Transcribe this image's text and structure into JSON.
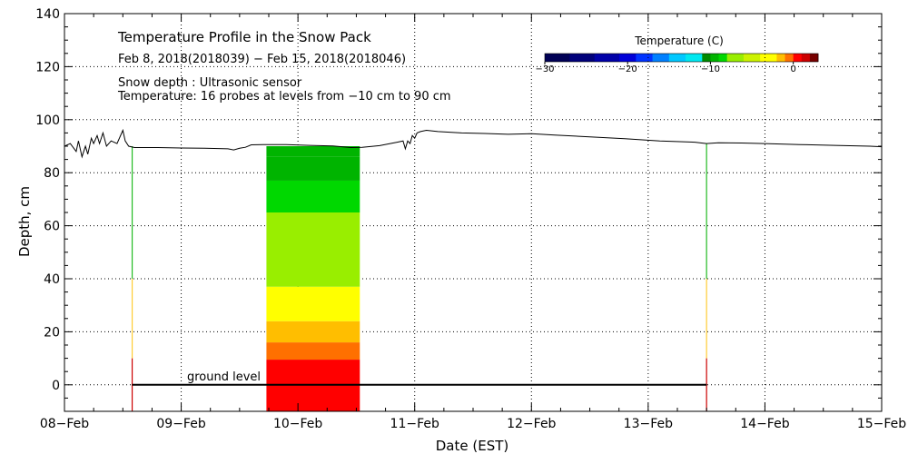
{
  "chart_data": {
    "type": "area",
    "title": "Temperature Profile in the Snow Pack",
    "subtitle": "Feb  8, 2018(2018039) − Feb 15, 2018(2018046)",
    "info_lines": [
      "Snow depth : Ultrasonic sensor",
      "Temperature: 16 probes at levels from −10 cm to 90 cm"
    ],
    "xlabel": "Date (EST)",
    "ylabel": "Depth, cm",
    "xlim": [
      0,
      7
    ],
    "ylim": [
      -10,
      140
    ],
    "x_ticks": [
      {
        "value": 0,
        "label": "08−Feb"
      },
      {
        "value": 1,
        "label": "09−Feb"
      },
      {
        "value": 2,
        "label": "10−Feb"
      },
      {
        "value": 3,
        "label": "11−Feb"
      },
      {
        "value": 4,
        "label": "12−Feb"
      },
      {
        "value": 5,
        "label": "13−Feb"
      },
      {
        "value": 6,
        "label": "14−Feb"
      },
      {
        "value": 7,
        "label": "15−Feb"
      }
    ],
    "y_ticks": [
      {
        "value": 0,
        "label": "0"
      },
      {
        "value": 20,
        "label": "20"
      },
      {
        "value": 40,
        "label": "40"
      },
      {
        "value": 60,
        "label": "60"
      },
      {
        "value": 80,
        "label": "80"
      },
      {
        "value": 100,
        "label": "100"
      },
      {
        "value": 120,
        "label": "120"
      },
      {
        "value": 140,
        "label": "140"
      }
    ],
    "grid": true,
    "ground_level": {
      "depth": 0,
      "label": "ground level",
      "x_start": 0.58,
      "x_end": 5.5,
      "label_x": 1.05
    },
    "snow_depth": {
      "name": "Snow depth (Ultrasonic sensor)",
      "x": [
        0,
        0.05,
        0.1,
        0.12,
        0.15,
        0.18,
        0.2,
        0.23,
        0.25,
        0.28,
        0.3,
        0.33,
        0.36,
        0.4,
        0.45,
        0.5,
        0.52,
        0.55,
        0.6,
        0.7,
        0.8,
        1.0,
        1.2,
        1.4,
        1.45,
        1.5,
        1.55,
        1.6,
        1.7,
        1.9,
        2.1,
        2.3,
        2.45,
        2.55,
        2.7,
        2.85,
        2.9,
        2.92,
        2.94,
        2.96,
        2.98,
        3.0,
        3.02,
        3.05,
        3.1,
        3.2,
        3.4,
        3.6,
        3.8,
        4.0,
        4.2,
        4.5,
        4.8,
        5.1,
        5.4,
        5.5,
        5.6,
        5.8,
        6.0,
        6.3,
        6.6,
        6.9,
        7.0
      ],
      "depth": [
        90,
        91,
        88,
        92,
        86,
        90,
        87,
        93,
        91,
        94,
        91,
        95,
        90,
        92,
        91,
        96,
        92,
        90,
        89.5,
        89.5,
        89.5,
        89.3,
        89.2,
        89.0,
        88.6,
        89.2,
        89.6,
        90.5,
        90.6,
        90.6,
        90.3,
        90.1,
        89.5,
        89.6,
        90.2,
        91.5,
        92,
        89,
        92,
        91,
        94,
        93,
        95,
        95.5,
        96,
        95.5,
        95,
        94.8,
        94.5,
        94.7,
        94.2,
        93.5,
        92.8,
        92,
        91.5,
        91,
        91.3,
        91.2,
        91,
        90.6,
        90.3,
        90.0,
        89.8
      ]
    },
    "temperature_profile": {
      "x_start": 1.73,
      "x_end": 2.53,
      "bands": [
        {
          "temp_c": 0.3,
          "bottom": -10,
          "top": 9.5
        },
        {
          "temp_c": -0.8,
          "bottom": 9.5,
          "top": 16
        },
        {
          "temp_c": -1.7,
          "bottom": 16,
          "top": 24
        },
        {
          "temp_c": -3.0,
          "bottom": 24,
          "top": 37
        },
        {
          "temp_c": -7.0,
          "bottom": 37,
          "top": 65
        },
        {
          "temp_c": -8.5,
          "bottom": 65,
          "top": 77
        },
        {
          "temp_c": -9.3,
          "bottom": 77,
          "top": 86
        },
        {
          "temp_c": -10.0,
          "bottom": 86,
          "top": 90
        }
      ]
    },
    "sensor_traces": [
      {
        "x": 0.58,
        "segments": [
          {
            "from": -10,
            "to": 10,
            "color": "#cc0000"
          },
          {
            "from": 10,
            "to": 40,
            "color": "#ffcc33"
          },
          {
            "from": 40,
            "to": 90,
            "color": "#22bb22"
          }
        ]
      },
      {
        "x": 5.5,
        "segments": [
          {
            "from": -10,
            "to": 10,
            "color": "#cc0000"
          },
          {
            "from": 10,
            "to": 40,
            "color": "#ffcc33"
          },
          {
            "from": 40,
            "to": 91,
            "color": "#22bb22"
          }
        ]
      }
    ],
    "colorbar": {
      "title": "Temperature (C)",
      "min": -30,
      "max": 3,
      "ticks": [
        {
          "value": -30,
          "label": "−30"
        },
        {
          "value": -20,
          "label": "−20"
        },
        {
          "value": -10,
          "label": "−10"
        },
        {
          "value": 0,
          "label": "0"
        }
      ],
      "levels": [
        {
          "from": -30,
          "to": -27,
          "color": "#000055"
        },
        {
          "from": -27,
          "to": -24,
          "color": "#00007a"
        },
        {
          "from": -24,
          "to": -21,
          "color": "#0000a8"
        },
        {
          "from": -21,
          "to": -19,
          "color": "#0000d8"
        },
        {
          "from": -19,
          "to": -17,
          "color": "#0033ff"
        },
        {
          "from": -17,
          "to": -15,
          "color": "#0080ff"
        },
        {
          "from": -15,
          "to": -13,
          "color": "#00c8ff"
        },
        {
          "from": -13,
          "to": -11,
          "color": "#00e8f0"
        },
        {
          "from": -11,
          "to": -10,
          "color": "#008a00"
        },
        {
          "from": -10,
          "to": -9,
          "color": "#00b400"
        },
        {
          "from": -9,
          "to": -8,
          "color": "#00d800"
        },
        {
          "from": -8,
          "to": -6,
          "color": "#99ee00"
        },
        {
          "from": -6,
          "to": -4,
          "color": "#ccf200"
        },
        {
          "from": -4,
          "to": -2,
          "color": "#ffff00"
        },
        {
          "from": -2,
          "to": -1,
          "color": "#ffbe00"
        },
        {
          "from": -1,
          "to": 0,
          "color": "#ff7000"
        },
        {
          "from": 0,
          "to": 1,
          "color": "#ff0000"
        },
        {
          "from": 1,
          "to": 2,
          "color": "#cc0000"
        },
        {
          "from": 2,
          "to": 3,
          "color": "#770000"
        }
      ]
    }
  }
}
